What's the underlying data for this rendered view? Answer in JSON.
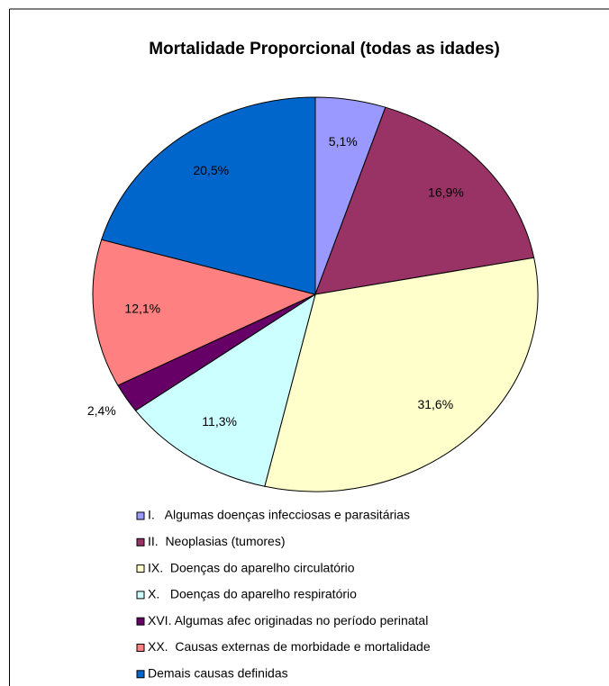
{
  "chart_data": {
    "type": "pie",
    "title": "Mortalidade Proporcional (todas as idades)",
    "categories": [
      "I.   Algumas doenças infecciosas e parasitárias",
      "II.  Neoplasias (tumores)",
      "IX.  Doenças do aparelho circulatório",
      "X.   Doenças do aparelho respiratório",
      "XVI. Algumas afec originadas no período perinatal",
      "XX.  Causas externas de morbidade e mortalidade",
      "Demais causas definidas"
    ],
    "values": [
      5.1,
      16.9,
      31.6,
      11.3,
      2.4,
      12.1,
      20.5
    ],
    "value_labels": [
      "5,1%",
      "16,9%",
      "31,6%",
      "11,3%",
      "2,4%",
      "12,1%",
      "20,5%"
    ],
    "colors": [
      "#9999ff",
      "#993366",
      "#ffffcc",
      "#ccffff",
      "#660066",
      "#ff8080",
      "#0066cc"
    ],
    "legend": "bottom"
  }
}
